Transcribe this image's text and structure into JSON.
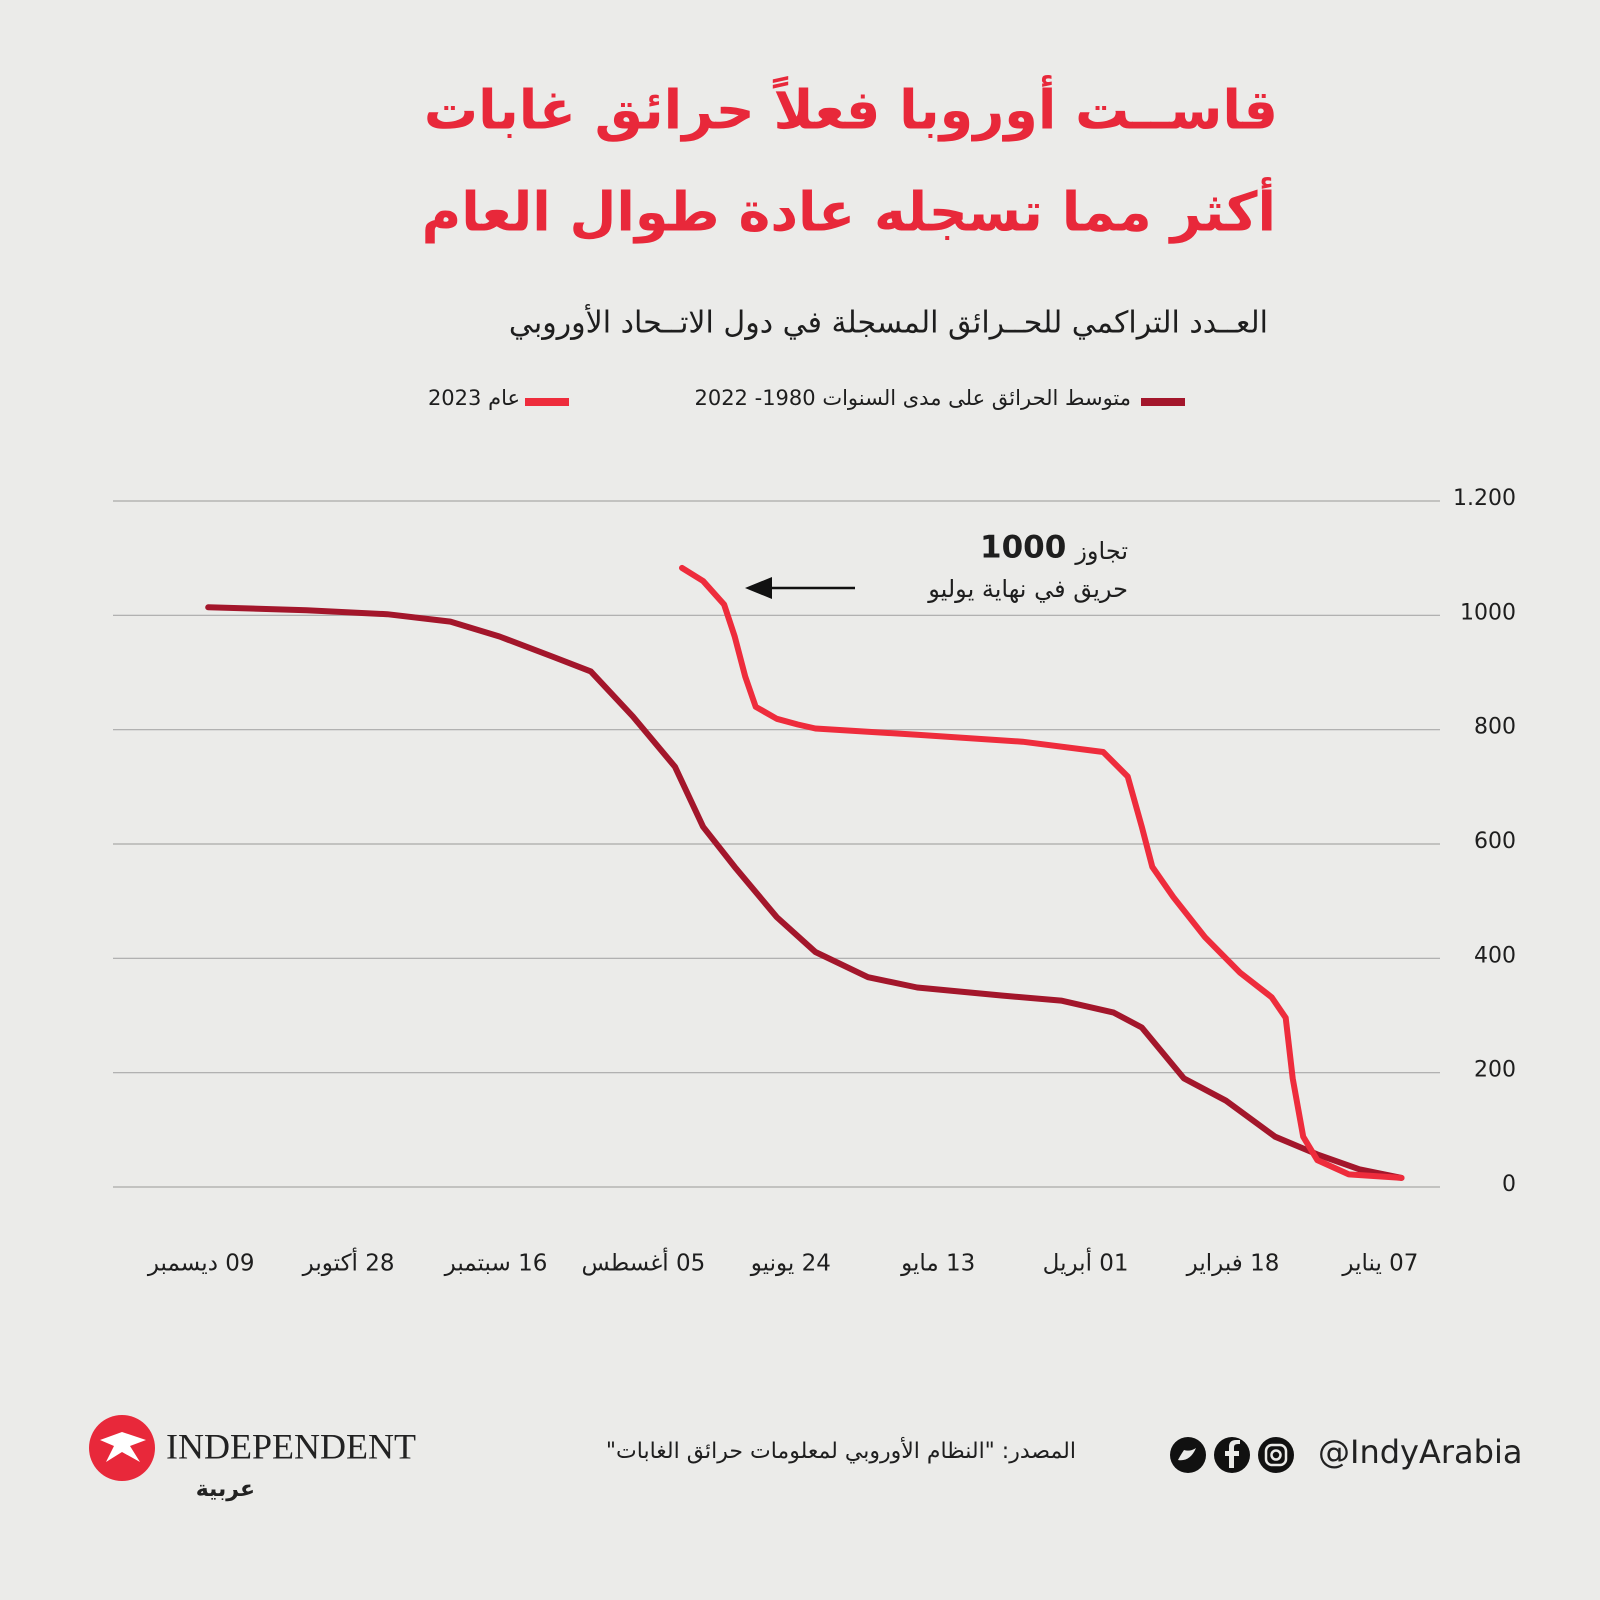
{
  "chart_data": {
    "type": "line",
    "title": [
      "قاســت أوروبا فعلاً حرائق غابات",
      "أكثر مما تسجله عادة طوال العام"
    ],
    "subtitle": "العــدد التراكمي للحــرائق المسجلة في دول الاتــحاد الأوروبي",
    "xlim": [
      365,
      0
    ],
    "xticks": [
      {
        "value": 7,
        "label": "07 يناير"
      },
      {
        "value": 49,
        "label": "18 فبراير"
      },
      {
        "value": 91,
        "label": "01 أبريل"
      },
      {
        "value": 133,
        "label": "13 مايو"
      },
      {
        "value": 175,
        "label": "24 يونيو"
      },
      {
        "value": 217,
        "label": "05 أغسطس"
      },
      {
        "value": 259,
        "label": "16 سبتمبر"
      },
      {
        "value": 301,
        "label": "28 أكتوبر"
      },
      {
        "value": 343,
        "label": "09 ديسمبر"
      }
    ],
    "ylim": [
      0,
      1200
    ],
    "yticks": [
      0,
      200,
      400,
      600,
      800,
      1000,
      {
        "value": 1200,
        "label": "1.200"
      }
    ],
    "grid": true,
    "series": [
      {
        "name": "متوسط الحرائق على مدى السنوات 1980- 2022",
        "color": "#a3162b",
        "x": [
          1,
          13,
          25,
          37,
          51,
          63,
          75,
          83,
          98,
          115,
          139,
          153,
          168,
          179,
          191,
          200,
          208,
          220,
          232,
          243,
          258,
          272,
          290,
          313,
          341
        ],
        "values": [
          16,
          31,
          57,
          88,
          151,
          190,
          279,
          305,
          326,
          335,
          349,
          367,
          411,
          472,
          560,
          630,
          735,
          823,
          902,
          928,
          963,
          989,
          1002,
          1009,
          1014
        ]
      },
      {
        "name": "عام 2023",
        "color": "#ee2c3c",
        "x": [
          1,
          16,
          25,
          29,
          32,
          34,
          38,
          47,
          57,
          66,
          72,
          75,
          79,
          86,
          109,
          139,
          168,
          173,
          179,
          185,
          188,
          191,
          194,
          200,
          206
        ],
        "values": [
          16,
          22,
          47,
          88,
          190,
          296,
          332,
          375,
          437,
          507,
          560,
          630,
          718,
          761,
          779,
          791,
          802,
          809,
          819,
          840,
          893,
          963,
          1019,
          1060,
          1083
        ]
      }
    ],
    "annotation": {
      "lead": "تجاوز",
      "value": "1000",
      "line2": "حريق في نهاية يوليو"
    }
  },
  "footer": {
    "source": "المصدر: \"النظام الأوروبي لمعلومات حرائق الغابات\"",
    "brand": "INDEPENDENT",
    "brand_sub": "عربية",
    "handle": "@IndyArabia"
  }
}
